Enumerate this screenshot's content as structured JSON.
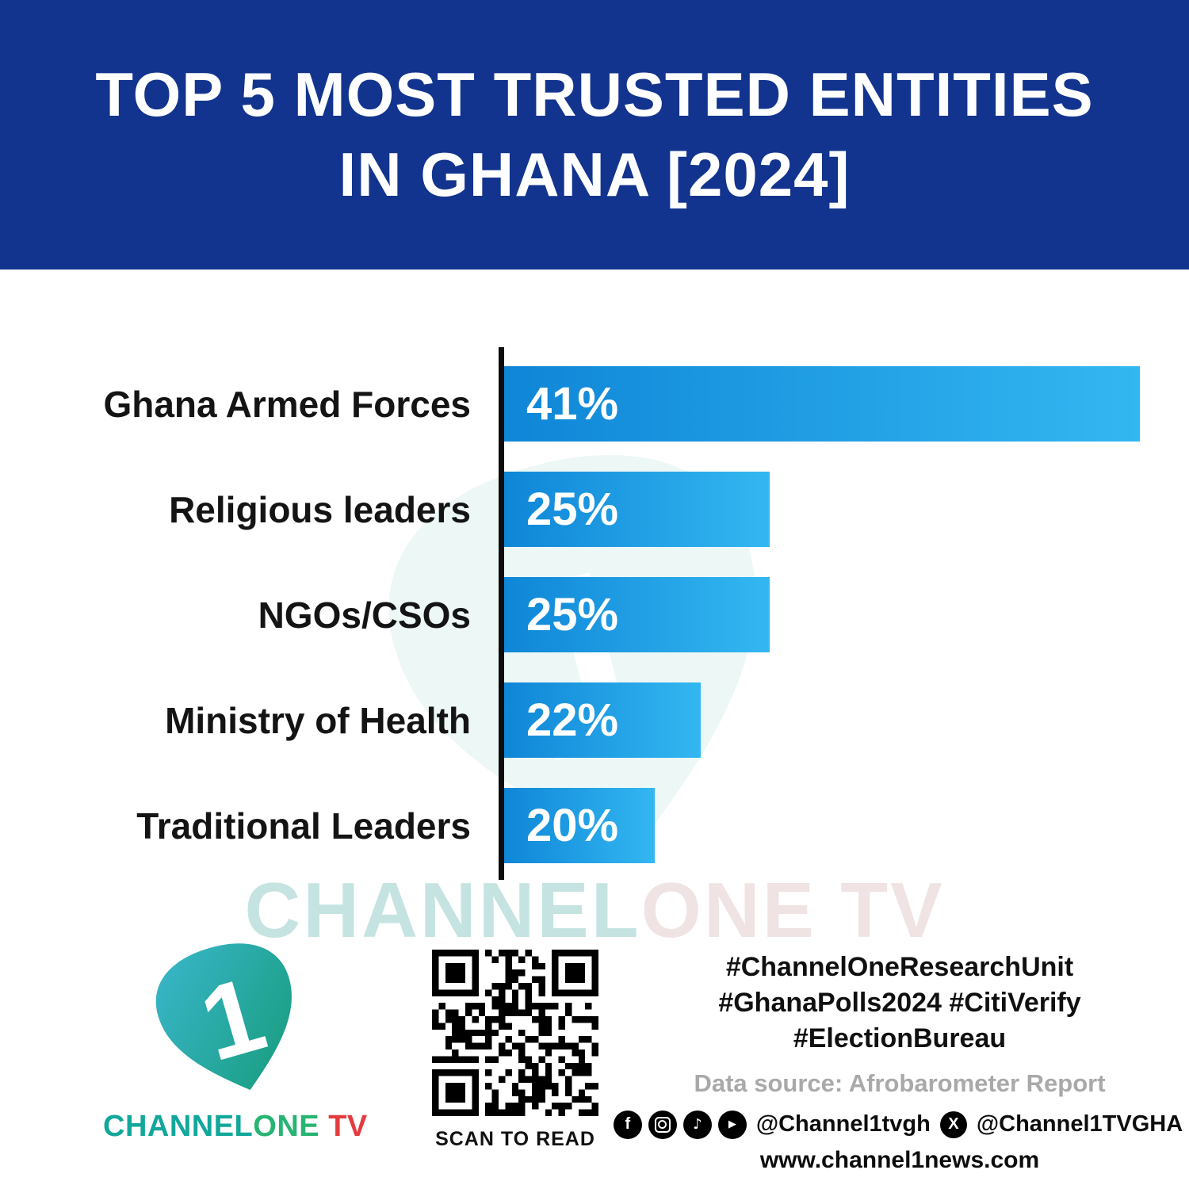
{
  "header": {
    "title_line1": "TOP 5 MOST TRUSTED ENTITIES",
    "title_line2": "IN GHANA [2024]"
  },
  "chart_data": {
    "type": "bar",
    "orientation": "horizontal",
    "title": "Top 5 Most Trusted Entities in Ghana [2024]",
    "categories": [
      "Ghana Armed Forces",
      "Religious leaders",
      "NGOs/CSOs",
      "Ministry of Health",
      "Traditional Leaders"
    ],
    "values": [
      41,
      25,
      25,
      22,
      20
    ],
    "value_labels": [
      "41%",
      "25%",
      "25%",
      "22%",
      "20%"
    ],
    "unit": "%",
    "xlim": [
      13.5,
      42
    ],
    "grid": false,
    "legend": false,
    "axis_color": "#0d0d0d",
    "bar_color_start": "#0f86d7",
    "bar_color_end": "#33b7f1"
  },
  "watermark": {
    "part1": "CHANNEL",
    "part2": "ONE TV"
  },
  "footer": {
    "logo": {
      "numeral": "1",
      "part_channel": "CHANNEL",
      "part_one": "ONE",
      "part_tv": " TV"
    },
    "qr_caption": "SCAN TO READ",
    "hashtags": {
      "line1": "#ChannelOneResearchUnit",
      "line2": "#GhanaPolls2024 #CitiVerify",
      "line3": "#ElectionBureau"
    },
    "data_source": "Data source: Afrobarometer Report",
    "social_handle_main": "@Channel1tvgh",
    "social_handle_x": "@Channel1TVGHA",
    "website": "www.channel1news.com",
    "icons": {
      "facebook": "f",
      "instagram": "camera-shape",
      "tiktok": "♪",
      "youtube": "▶",
      "x": "X"
    }
  }
}
